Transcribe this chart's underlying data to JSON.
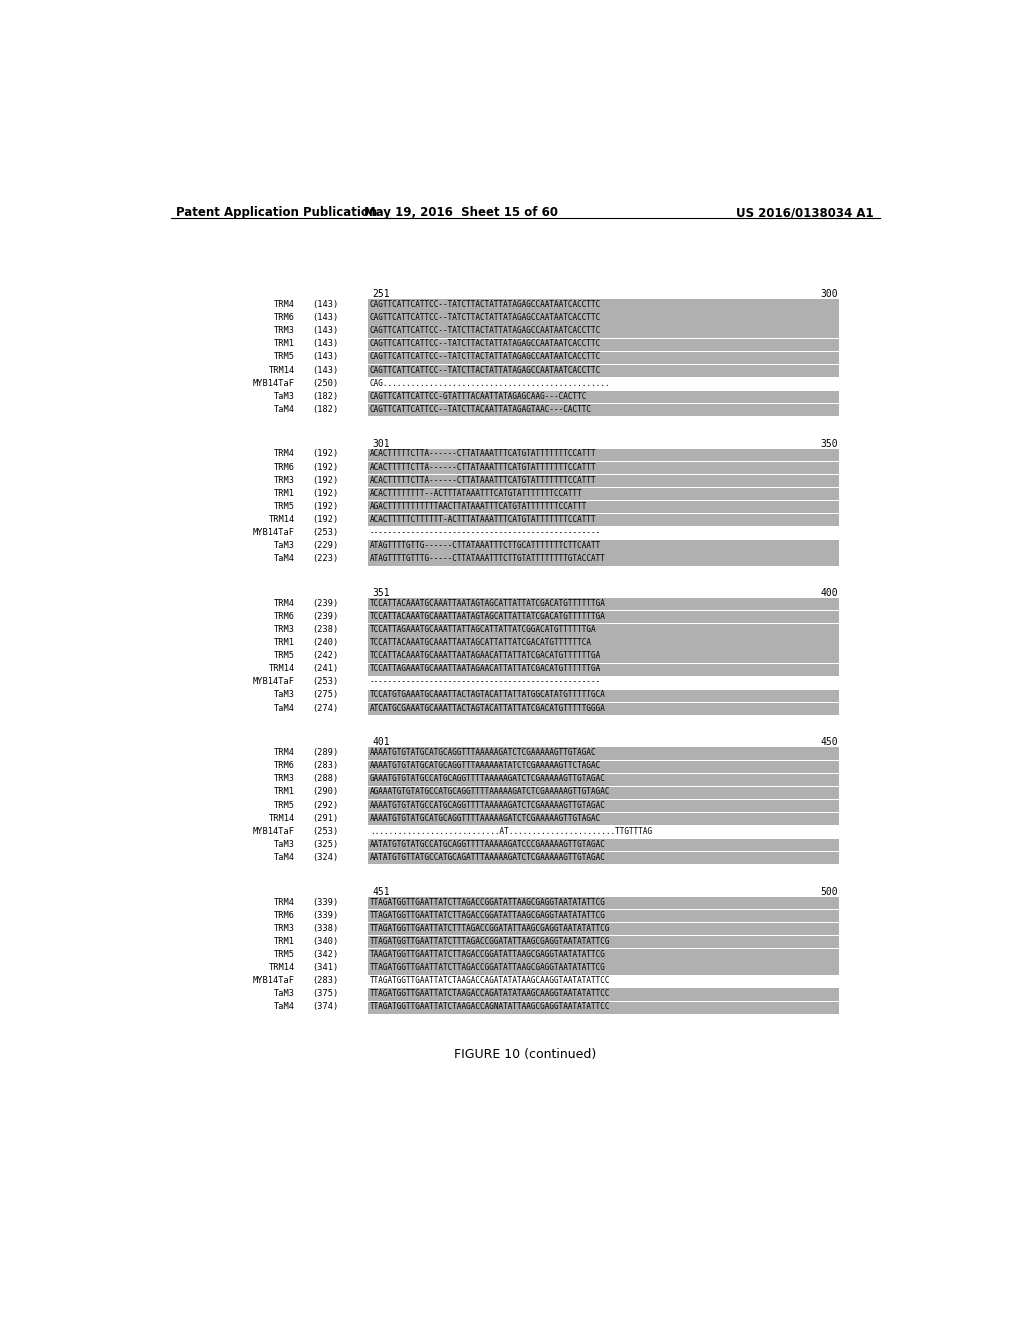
{
  "header_left": "Patent Application Publication",
  "header_center": "May 19, 2016  Sheet 15 of 60",
  "header_right": "US 2016/0138034 A1",
  "figure_caption": "FIGURE 10 (continued)",
  "background_color": "#ffffff",
  "blocks": [
    {
      "range_start": "251",
      "range_end": "300",
      "sequences": [
        {
          "name": "TRM4",
          "pos": "(143)",
          "seq": "CAGTTCATTCATTCC--TATCTTACTATTATAGAGCCAATAATCACCTTC",
          "shaded": true
        },
        {
          "name": "TRM6",
          "pos": "(143)",
          "seq": "CAGTTCATTCATTCC--TATCTTACTATTATAGAGCCAATAATCACCTTC",
          "shaded": true
        },
        {
          "name": "TRM3",
          "pos": "(143)",
          "seq": "CAGTTCATTCATTCC--TATCTTACTATTATAGAGCCAATAATCACCTTC",
          "shaded": true
        },
        {
          "name": "TRM1",
          "pos": "(143)",
          "seq": "CAGTTCATTCATTCC--TATCTTACTATTATAGAGCCAATAATCACCTTC",
          "shaded": true
        },
        {
          "name": "TRM5",
          "pos": "(143)",
          "seq": "CAGTTCATTCATTCC--TATCTTACTATTATAGAGCCAATAATCACCTTC",
          "shaded": true
        },
        {
          "name": "TRM14",
          "pos": "(143)",
          "seq": "CAGTTCATTCATTCC--TATCTTACTATTATAGAGCCAATAATCACCTTC",
          "shaded": true
        },
        {
          "name": "MYB14TaF",
          "pos": "(250)",
          "seq": "CAG.................................................",
          "shaded": false
        },
        {
          "name": "TaM3",
          "pos": "(182)",
          "seq": "CAGTTCATTCATTCC-GTATTTACAATTATAGAGCAAG---CACTTC",
          "shaded": true
        },
        {
          "name": "TaM4",
          "pos": "(182)",
          "seq": "CAGTTCATTCATTCC--TATCTTACAATTATAGAGTAAC---CACTTC",
          "shaded": true
        }
      ]
    },
    {
      "range_start": "301",
      "range_end": "350",
      "sequences": [
        {
          "name": "TRM4",
          "pos": "(192)",
          "seq": "ACACTTTTTCTTA------CTTATAAATTTCATGTATTTTTTTCCATTT",
          "shaded": true
        },
        {
          "name": "TRM6",
          "pos": "(192)",
          "seq": "ACACTTTTTCTTA------CTTATAAATTTCATGTATTTTTTTCCATTT",
          "shaded": true
        },
        {
          "name": "TRM3",
          "pos": "(192)",
          "seq": "ACACTTTTTCTTA------CTTATAAATTTCATGTATTTTTTTCCATTT",
          "shaded": true
        },
        {
          "name": "TRM1",
          "pos": "(192)",
          "seq": "ACACTTTTTTTT--ACTTTATAAATTTCATGTATTTTTTTCCATTT",
          "shaded": true
        },
        {
          "name": "TRM5",
          "pos": "(192)",
          "seq": "AGACTTTTTTTTTTTAACTTATAAATTTCATGTATTTTTTTCCATTT",
          "shaded": true
        },
        {
          "name": "TRM14",
          "pos": "(192)",
          "seq": "ACACTTTTTCTTTTTT-ACTTTATAAATTTCATGTATTTTTTTCCATTT",
          "shaded": true
        },
        {
          "name": "MYB14TaF",
          "pos": "(253)",
          "seq": "--------------------------------------------------",
          "shaded": false
        },
        {
          "name": "TaM3",
          "pos": "(229)",
          "seq": "ATAGTTTTGTTG------CTTATAAATTTCTTGCATTTTTTTCTTCAATT",
          "shaded": true
        },
        {
          "name": "TaM4",
          "pos": "(223)",
          "seq": "ATAGTTTTGTTTG-----CTTATAAATTTCTTGTATTTTTTTTGTACCATT",
          "shaded": true
        }
      ]
    },
    {
      "range_start": "351",
      "range_end": "400",
      "sequences": [
        {
          "name": "TRM4",
          "pos": "(239)",
          "seq": "TCCATTACAAATGCAAATTAATAGTAGCATTATTATCGACATGTTTTTTGA",
          "shaded": true
        },
        {
          "name": "TRM6",
          "pos": "(239)",
          "seq": "TCCATTACAAATGCAAATTAATAGTAGCATTATTATCGACATGTTTTTTGA",
          "shaded": true
        },
        {
          "name": "TRM3",
          "pos": "(238)",
          "seq": "TCCATTAGAAATGCAAATTATTAGCATTATTATCGGACATGTTTTTTGA",
          "shaded": true
        },
        {
          "name": "TRM1",
          "pos": "(240)",
          "seq": "TCCATTACAAATGCAAATTAATAGCATTATTATCGACATGTTTTTTCA",
          "shaded": true
        },
        {
          "name": "TRM5",
          "pos": "(242)",
          "seq": "TCCATTACAAATGCAAATTAATAGAACATTATTATCGACATGTTTTTTGA",
          "shaded": true
        },
        {
          "name": "TRM14",
          "pos": "(241)",
          "seq": "TCCATTAGAAATGCAAATTAATAGAACATTATTATCGACATGTTTTTTGA",
          "shaded": true
        },
        {
          "name": "MYB14TaF",
          "pos": "(253)",
          "seq": "--------------------------------------------------",
          "shaded": false
        },
        {
          "name": "TaM3",
          "pos": "(275)",
          "seq": "TCCATGTGAAATGCAAATTACTAGTACATTATTATGGCATATGTTTTTGCA",
          "shaded": true
        },
        {
          "name": "TaM4",
          "pos": "(274)",
          "seq": "ATCATGCGAAATGCAAATTACTAGTACATTATTATCGACATGTTTTTGGGA",
          "shaded": true
        }
      ]
    },
    {
      "range_start": "401",
      "range_end": "450",
      "sequences": [
        {
          "name": "TRM4",
          "pos": "(289)",
          "seq": "AAAATGTGTATGCATGCAGGTTTAAAAAGATCTCGAAAAAGTTGTAGAC",
          "shaded": true
        },
        {
          "name": "TRM6",
          "pos": "(283)",
          "seq": "AAAATGTGTATGCATGCAGGTTTAAAAAATATCTCGAAAAAGTTCTAGAC",
          "shaded": true
        },
        {
          "name": "TRM3",
          "pos": "(288)",
          "seq": "GAAATGTGTATGCCATGCAGGTTTTAAAAAGATCTCGAAAAAGTTGTAGAC",
          "shaded": true
        },
        {
          "name": "TRM1",
          "pos": "(290)",
          "seq": "AGAAATGTGTATGCCATGCAGGTTTTAAAAAGATCTCGAAAAAGTTGTAGAC",
          "shaded": true
        },
        {
          "name": "TRM5",
          "pos": "(292)",
          "seq": "AAAATGTGTATGCCATGCAGGTTTTAAAAAGATCTCGAAAAAGTTGTAGAC",
          "shaded": true
        },
        {
          "name": "TRM14",
          "pos": "(291)",
          "seq": "AAAATGTGTATGCATGCAGGTTTTAAAAAGATCTCGAAAAAGTTGTAGAC",
          "shaded": true
        },
        {
          "name": "MYB14TaF",
          "pos": "(253)",
          "seq": "............................AT.......................TTGTTTAG",
          "shaded": false
        },
        {
          "name": "TaM3",
          "pos": "(325)",
          "seq": "AATATGTGTATGCCATGCAGGTTTTAAAAAGATCCCGAAAAAGTTGTAGAC",
          "shaded": true
        },
        {
          "name": "TaM4",
          "pos": "(324)",
          "seq": "AATATGTGTTATGCCATGCAGATTTAAAAAGATCTCGAAAAAGTTGTAGAC",
          "shaded": true
        }
      ]
    },
    {
      "range_start": "451",
      "range_end": "500",
      "sequences": [
        {
          "name": "TRM4",
          "pos": "(339)",
          "seq": "TTAGATGGTTGAATTATCTTAGACCGGATATTAAGCGAGGTAATATATTCG",
          "shaded": true
        },
        {
          "name": "TRM6",
          "pos": "(339)",
          "seq": "TTAGATGGTTGAATTATCTTAGACCGGATATTAAGCGAGGTAATATATTCG",
          "shaded": true
        },
        {
          "name": "TRM3",
          "pos": "(338)",
          "seq": "TTAGATGGTTGAATTATCTTTAGACCGGATATTAAGCGAGGTAATATATTCG",
          "shaded": true
        },
        {
          "name": "TRM1",
          "pos": "(340)",
          "seq": "TTAGATGGTTGAATTATCTTTAGACCGGATATTAAGCGAGGTAATATATTCG",
          "shaded": true
        },
        {
          "name": "TRM5",
          "pos": "(342)",
          "seq": "TAAGATGGTTGAATTATCTTAGACCGGATATTAAGCGAGGTAATATATTCG",
          "shaded": true
        },
        {
          "name": "TRM14",
          "pos": "(341)",
          "seq": "TTAGATGGTTGAATTATCTTAGACCGGATATTAAGCGAGGTAATATATTCG",
          "shaded": true
        },
        {
          "name": "MYB14TaF",
          "pos": "(283)",
          "seq": "TTAGATGGTTGAATTATCTAAGACCAGATATATAAGCAAGGTAATATATTCC",
          "shaded": false
        },
        {
          "name": "TaM3",
          "pos": "(375)",
          "seq": "TTAGATGGTTGAATTATCTAAGACCAGATATATAAGCAAGGTAATATATTCC",
          "shaded": true
        },
        {
          "name": "TaM4",
          "pos": "(374)",
          "seq": "TTAGATGGTTGAATTATCTAAGACCAGNATATTAAGCGAGGTAATATATTCC",
          "shaded": true
        }
      ]
    }
  ]
}
